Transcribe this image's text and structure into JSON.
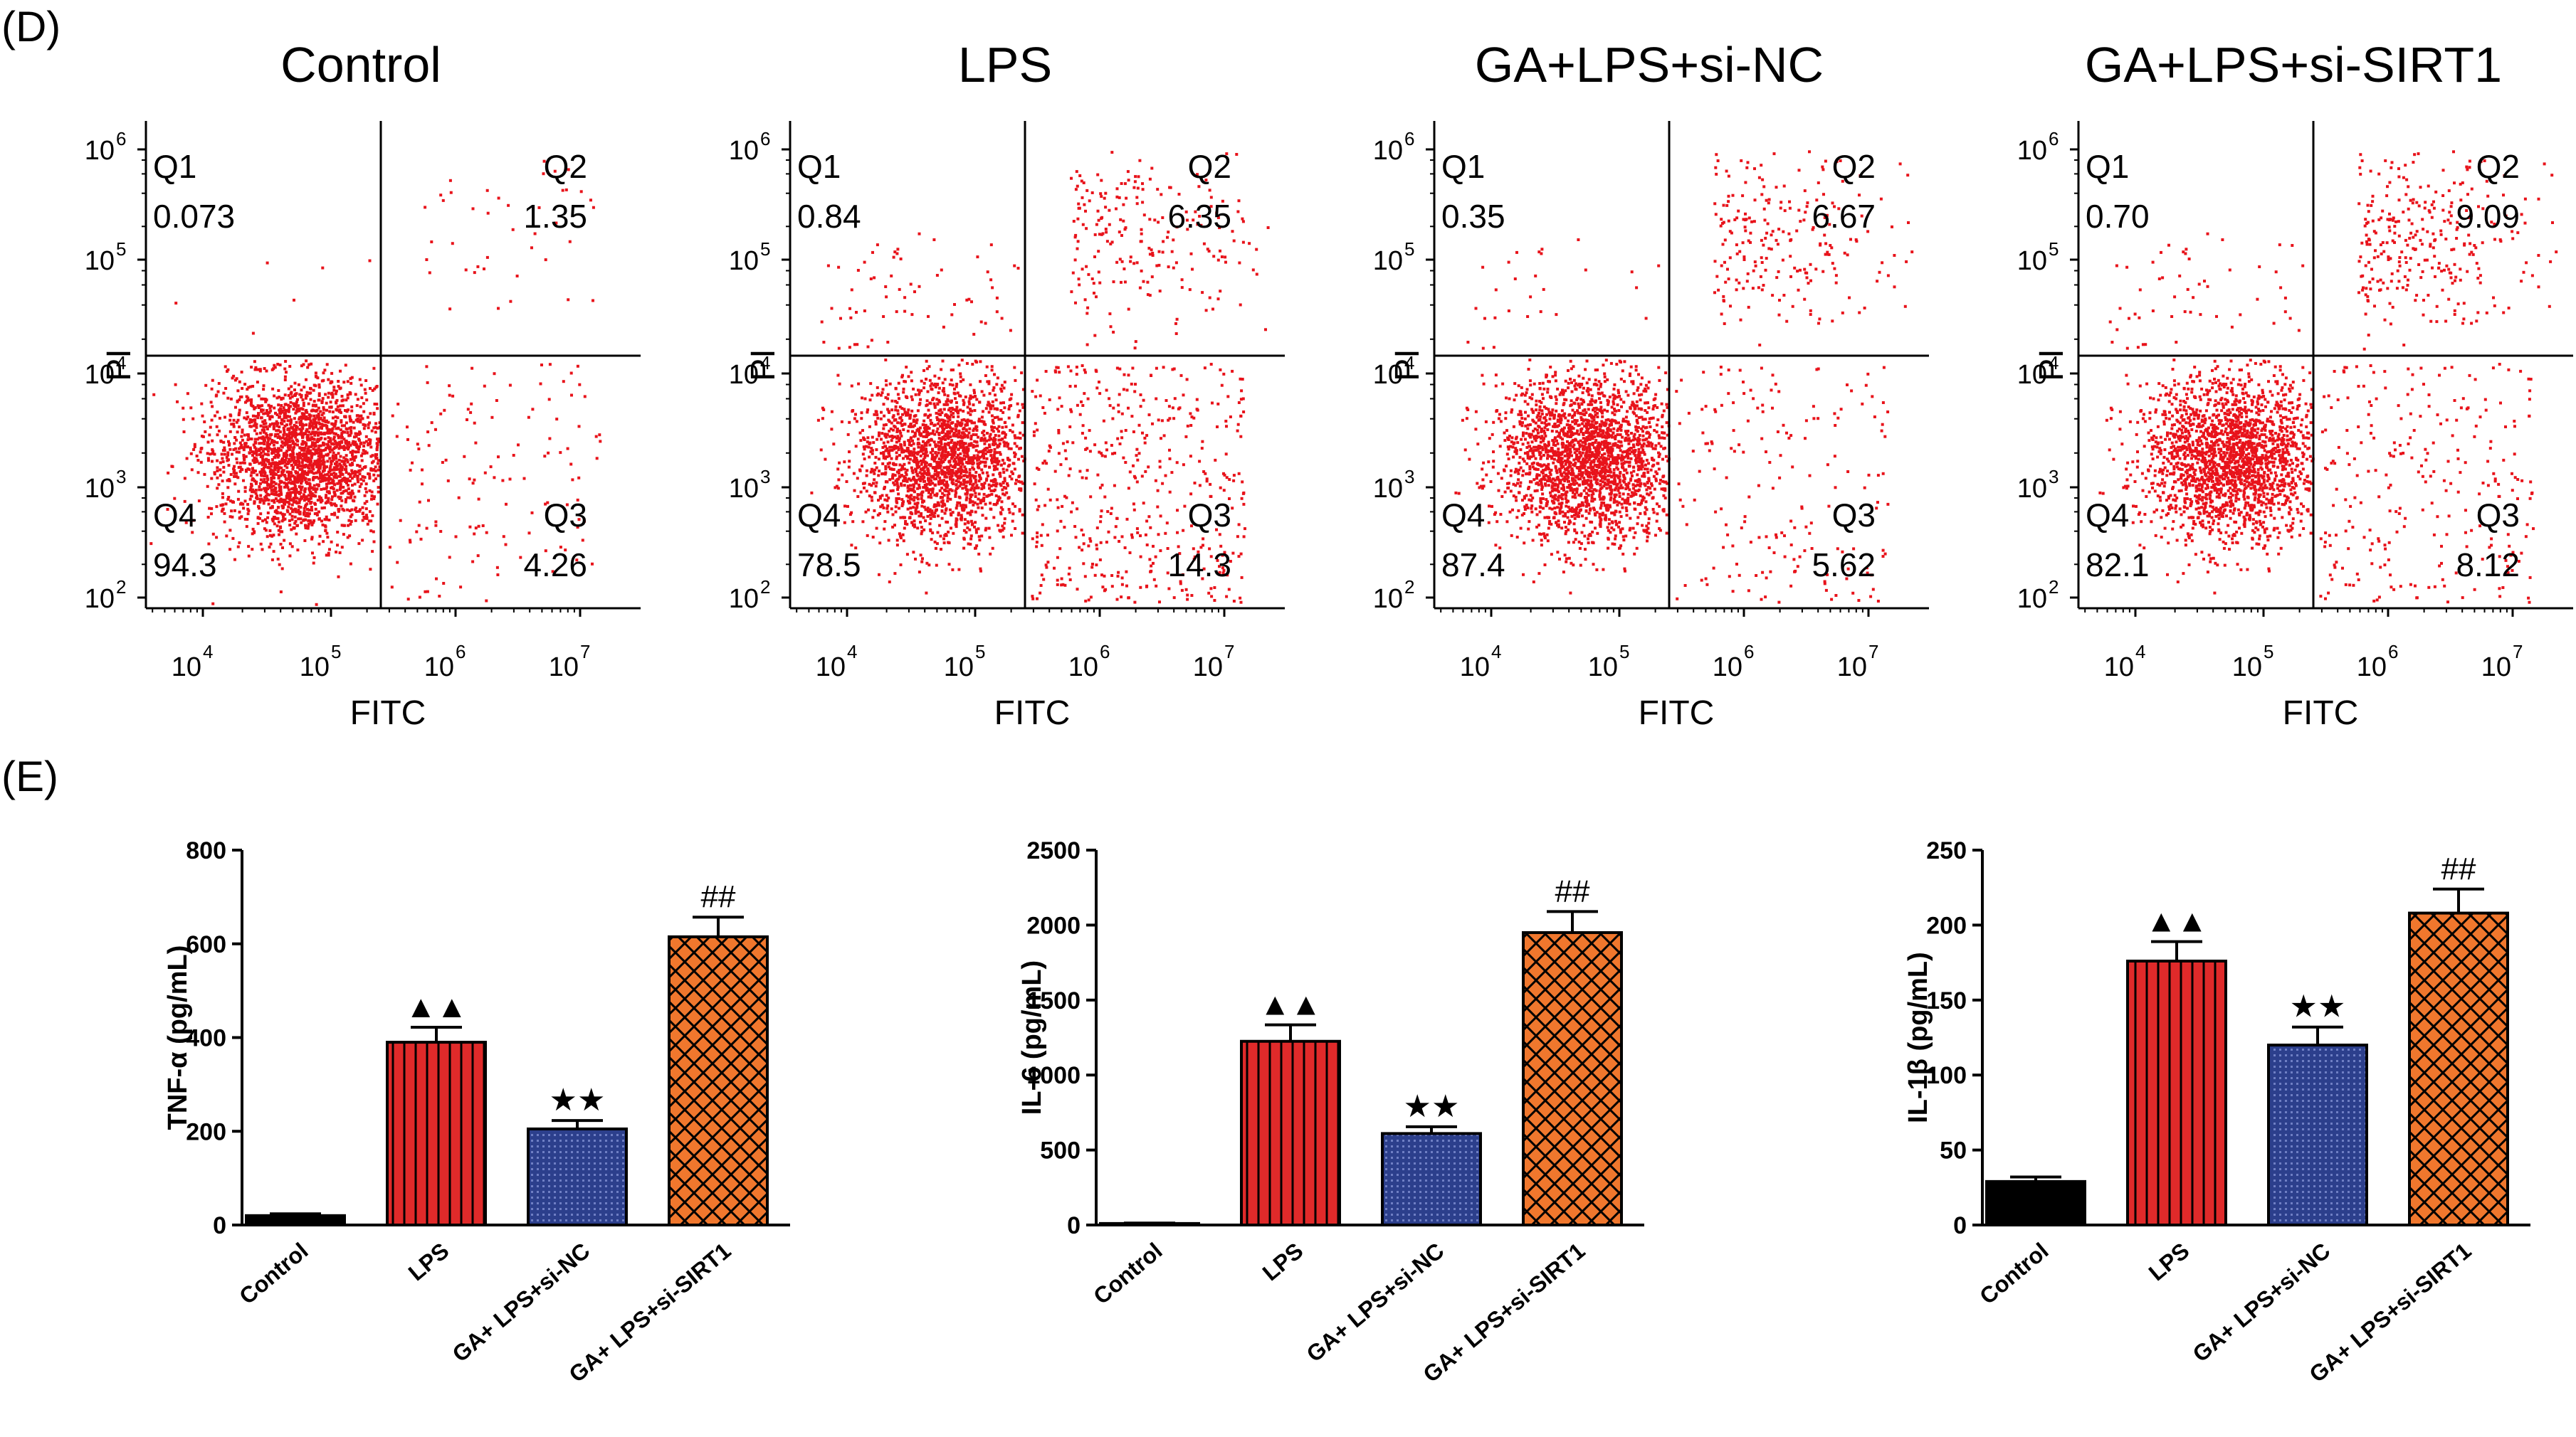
{
  "panels": {
    "flow_label": "(D)",
    "bar_label": "(E)"
  },
  "colors": {
    "dots": "#e8131b",
    "control": "#000000",
    "lps": "#e02a2a",
    "si_nc": "#2c3f8c",
    "si_sirt1": "#f0772d"
  },
  "chart_data": [
    {
      "type": "scatter",
      "title": "Control",
      "xlabel": "FITC",
      "ylabel": "PI",
      "x_scale": "log",
      "y_scale": "log",
      "x_ticks": [
        "10",
        "10",
        "10",
        "10"
      ],
      "x_tick_exp": [
        "4",
        "5",
        "6",
        "7"
      ],
      "y_ticks": [
        "10",
        "10",
        "10",
        "10",
        "10"
      ],
      "y_tick_exp": [
        "2",
        "3",
        "4",
        "5",
        "6"
      ],
      "quadrants": [
        {
          "name": "Q1",
          "value": "0.073"
        },
        {
          "name": "Q2",
          "value": "1.35"
        },
        {
          "name": "Q3",
          "value": "4.26"
        },
        {
          "name": "Q4",
          "value": "94.3"
        }
      ]
    },
    {
      "type": "scatter",
      "title": "LPS",
      "xlabel": "FITC",
      "ylabel": "PI",
      "x_scale": "log",
      "y_scale": "log",
      "x_ticks": [
        "10",
        "10",
        "10",
        "10"
      ],
      "x_tick_exp": [
        "4",
        "5",
        "6",
        "7"
      ],
      "y_ticks": [
        "10",
        "10",
        "10",
        "10",
        "10"
      ],
      "y_tick_exp": [
        "2",
        "3",
        "4",
        "5",
        "6"
      ],
      "quadrants": [
        {
          "name": "Q1",
          "value": "0.84"
        },
        {
          "name": "Q2",
          "value": "6.35"
        },
        {
          "name": "Q3",
          "value": "14.3"
        },
        {
          "name": "Q4",
          "value": "78.5"
        }
      ]
    },
    {
      "type": "scatter",
      "title": "GA+LPS+si-NC",
      "xlabel": "FITC",
      "ylabel": "PI",
      "x_scale": "log",
      "y_scale": "log",
      "x_ticks": [
        "10",
        "10",
        "10",
        "10"
      ],
      "x_tick_exp": [
        "4",
        "5",
        "6",
        "7"
      ],
      "y_ticks": [
        "10",
        "10",
        "10",
        "10",
        "10"
      ],
      "y_tick_exp": [
        "2",
        "3",
        "4",
        "5",
        "6"
      ],
      "quadrants": [
        {
          "name": "Q1",
          "value": "0.35"
        },
        {
          "name": "Q2",
          "value": "6.67"
        },
        {
          "name": "Q3",
          "value": "5.62"
        },
        {
          "name": "Q4",
          "value": "87.4"
        }
      ]
    },
    {
      "type": "scatter",
      "title": "GA+LPS+si-SIRT1",
      "xlabel": "FITC",
      "ylabel": "PI",
      "x_scale": "log",
      "y_scale": "log",
      "x_ticks": [
        "10",
        "10",
        "10",
        "10"
      ],
      "x_tick_exp": [
        "4",
        "5",
        "6",
        "7"
      ],
      "y_ticks": [
        "10",
        "10",
        "10",
        "10",
        "10"
      ],
      "y_tick_exp": [
        "2",
        "3",
        "4",
        "5",
        "6"
      ],
      "quadrants": [
        {
          "name": "Q1",
          "value": "0.70"
        },
        {
          "name": "Q2",
          "value": "9.09"
        },
        {
          "name": "Q3",
          "value": "8.12"
        },
        {
          "name": "Q4",
          "value": "82.1"
        }
      ]
    },
    {
      "type": "bar",
      "ylabel": "TNF-α (pg/mL)",
      "ylim": [
        0,
        800
      ],
      "yticks": [
        0,
        200,
        400,
        600,
        800
      ],
      "categories": [
        "Control",
        "LPS",
        "GA+ LPS+si-NC",
        "GA+ LPS+si-SIRT1"
      ],
      "values": [
        20,
        390,
        205,
        615
      ],
      "errors": [
        4,
        32,
        18,
        42
      ],
      "markers": [
        "",
        "▲▲",
        "★★",
        "##"
      ]
    },
    {
      "type": "bar",
      "ylabel": "IL-6 (pg/mL)",
      "ylim": [
        0,
        2500
      ],
      "yticks": [
        0,
        500,
        1000,
        1500,
        2000,
        2500
      ],
      "categories": [
        "Control",
        "LPS",
        "GA+ LPS+si-NC",
        "GA+ LPS+si-SIRT1"
      ],
      "values": [
        10,
        1225,
        610,
        1950
      ],
      "errors": [
        3,
        110,
        45,
        140
      ],
      "markers": [
        "",
        "▲▲",
        "★★",
        "##"
      ]
    },
    {
      "type": "bar",
      "ylabel": "IL-1β (pg/mL)",
      "ylim": [
        0,
        250
      ],
      "yticks": [
        0,
        50,
        100,
        150,
        200,
        250
      ],
      "categories": [
        "Control",
        "LPS",
        "GA+ LPS+si-NC",
        "GA+ LPS+si-SIRT1"
      ],
      "values": [
        29,
        176,
        120,
        208
      ],
      "errors": [
        3,
        13,
        12,
        16
      ],
      "markers": [
        "",
        "▲▲",
        "★★",
        "##"
      ]
    }
  ]
}
